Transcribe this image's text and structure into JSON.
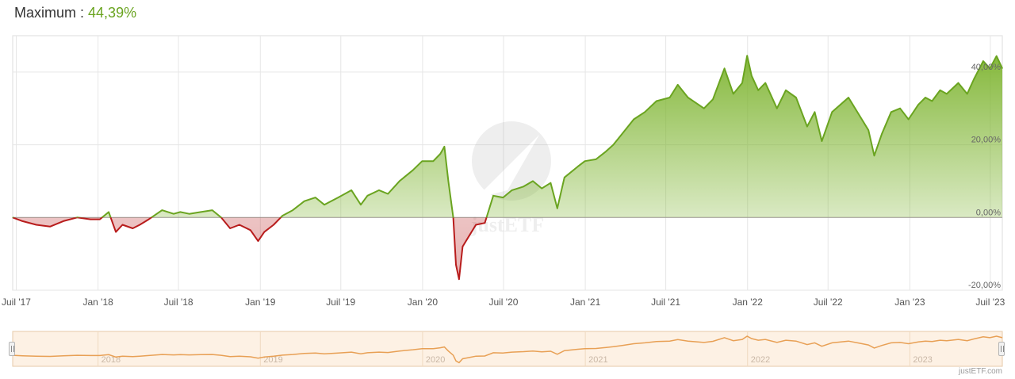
{
  "header": {
    "label": "Maximum :",
    "value": "44,39%"
  },
  "watermark": "justETF",
  "credit": "justETF.com",
  "colors": {
    "positive": "#6aa420",
    "negative": "#b81c1c",
    "navigator": "#e8a055"
  },
  "chart_data": {
    "type": "area",
    "x_range": [
      "2017-06-23",
      "2023-07-28"
    ],
    "ylim": [
      -20,
      50
    ],
    "y_ticks": [
      {
        "value": 40,
        "label": "40,00%"
      },
      {
        "value": 20,
        "label": "20,00%"
      },
      {
        "value": 0,
        "label": "0,00%"
      },
      {
        "value": -20,
        "label": "-20,00%"
      }
    ],
    "x_ticks": [
      {
        "date": "2017-07-01",
        "label": "Juil '17"
      },
      {
        "date": "2018-01-01",
        "label": "Jan '18"
      },
      {
        "date": "2018-07-01",
        "label": "Juil '18"
      },
      {
        "date": "2019-01-01",
        "label": "Jan '19"
      },
      {
        "date": "2019-07-01",
        "label": "Juil '19"
      },
      {
        "date": "2020-01-01",
        "label": "Jan '20"
      },
      {
        "date": "2020-07-01",
        "label": "Juil '20"
      },
      {
        "date": "2021-01-01",
        "label": "Jan '21"
      },
      {
        "date": "2021-07-01",
        "label": "Juil '21"
      },
      {
        "date": "2022-01-01",
        "label": "Jan '22"
      },
      {
        "date": "2022-07-01",
        "label": "Juil '22"
      },
      {
        "date": "2023-01-01",
        "label": "Jan '23"
      },
      {
        "date": "2023-07-01",
        "label": "Juil '23"
      }
    ],
    "navigator_ticks": [
      {
        "date": "2018-01-01",
        "label": "2018"
      },
      {
        "date": "2019-01-01",
        "label": "2019"
      },
      {
        "date": "2020-01-01",
        "label": "2020"
      },
      {
        "date": "2021-01-01",
        "label": "2021"
      },
      {
        "date": "2022-01-01",
        "label": "2022"
      },
      {
        "date": "2023-01-01",
        "label": "2023"
      }
    ],
    "grid": true,
    "series": [
      {
        "points": [
          [
            "2017-06-23",
            0
          ],
          [
            "2017-07-15",
            -1
          ],
          [
            "2017-08-15",
            -2
          ],
          [
            "2017-09-15",
            -2.5
          ],
          [
            "2017-10-15",
            -1
          ],
          [
            "2017-11-15",
            0
          ],
          [
            "2017-12-15",
            -0.5
          ],
          [
            "2018-01-05",
            -0.5
          ],
          [
            "2018-01-25",
            1.5
          ],
          [
            "2018-02-10",
            -4
          ],
          [
            "2018-02-25",
            -2
          ],
          [
            "2018-03-20",
            -3
          ],
          [
            "2018-04-05",
            -2
          ],
          [
            "2018-04-25",
            -0.5
          ],
          [
            "2018-05-25",
            2
          ],
          [
            "2018-06-20",
            1
          ],
          [
            "2018-07-05",
            1.5
          ],
          [
            "2018-07-25",
            1
          ],
          [
            "2018-08-20",
            1.5
          ],
          [
            "2018-09-15",
            2
          ],
          [
            "2018-10-05",
            0
          ],
          [
            "2018-10-25",
            -3
          ],
          [
            "2018-11-15",
            -2
          ],
          [
            "2018-12-10",
            -3.5
          ],
          [
            "2018-12-27",
            -6.5
          ],
          [
            "2019-01-10",
            -4
          ],
          [
            "2019-01-31",
            -2
          ],
          [
            "2019-02-20",
            0.5
          ],
          [
            "2019-03-15",
            2
          ],
          [
            "2019-04-10",
            4.5
          ],
          [
            "2019-05-05",
            5.5
          ],
          [
            "2019-05-25",
            3.5
          ],
          [
            "2019-06-25",
            5.5
          ],
          [
            "2019-07-25",
            7.5
          ],
          [
            "2019-08-15",
            3.5
          ],
          [
            "2019-08-30",
            6
          ],
          [
            "2019-09-25",
            7.5
          ],
          [
            "2019-10-15",
            6.5
          ],
          [
            "2019-11-10",
            10
          ],
          [
            "2019-12-10",
            13
          ],
          [
            "2019-12-31",
            15.5
          ],
          [
            "2020-01-25",
            15.5
          ],
          [
            "2020-02-10",
            17.5
          ],
          [
            "2020-02-19",
            19.5
          ],
          [
            "2020-02-28",
            10
          ],
          [
            "2020-03-10",
            0
          ],
          [
            "2020-03-16",
            -13
          ],
          [
            "2020-03-23",
            -17
          ],
          [
            "2020-03-31",
            -8
          ],
          [
            "2020-04-15",
            -5
          ],
          [
            "2020-04-30",
            -2
          ],
          [
            "2020-05-20",
            -1.5
          ],
          [
            "2020-06-08",
            6
          ],
          [
            "2020-06-30",
            5.5
          ],
          [
            "2020-07-20",
            7.5
          ],
          [
            "2020-08-15",
            8.5
          ],
          [
            "2020-09-05",
            10
          ],
          [
            "2020-09-25",
            8
          ],
          [
            "2020-10-15",
            9.5
          ],
          [
            "2020-10-30",
            2.5
          ],
          [
            "2020-11-15",
            11
          ],
          [
            "2020-12-15",
            14
          ],
          [
            "2020-12-31",
            15.5
          ],
          [
            "2021-01-25",
            16
          ],
          [
            "2021-02-15",
            18
          ],
          [
            "2021-03-05",
            20
          ],
          [
            "2021-03-25",
            23
          ],
          [
            "2021-04-20",
            27
          ],
          [
            "2021-05-15",
            29
          ],
          [
            "2021-06-10",
            32
          ],
          [
            "2021-07-10",
            33
          ],
          [
            "2021-07-28",
            36.5
          ],
          [
            "2021-08-20",
            33
          ],
          [
            "2021-09-25",
            30
          ],
          [
            "2021-10-15",
            32.5
          ],
          [
            "2021-11-10",
            41
          ],
          [
            "2021-11-30",
            34
          ],
          [
            "2021-12-20",
            37
          ],
          [
            "2021-12-31",
            44.5
          ],
          [
            "2022-01-10",
            39
          ],
          [
            "2022-01-25",
            35
          ],
          [
            "2022-02-10",
            37
          ],
          [
            "2022-03-08",
            30
          ],
          [
            "2022-03-28",
            35
          ],
          [
            "2022-04-20",
            33
          ],
          [
            "2022-05-15",
            25
          ],
          [
            "2022-06-01",
            29
          ],
          [
            "2022-06-17",
            21
          ],
          [
            "2022-07-10",
            29
          ],
          [
            "2022-08-16",
            33
          ],
          [
            "2022-09-10",
            28
          ],
          [
            "2022-09-30",
            24
          ],
          [
            "2022-10-13",
            17
          ],
          [
            "2022-10-30",
            23
          ],
          [
            "2022-11-20",
            29
          ],
          [
            "2022-12-10",
            30
          ],
          [
            "2022-12-29",
            27
          ],
          [
            "2023-01-20",
            31
          ],
          [
            "2023-02-05",
            33
          ],
          [
            "2023-02-20",
            32
          ],
          [
            "2023-03-10",
            35
          ],
          [
            "2023-03-25",
            34
          ],
          [
            "2023-04-20",
            37
          ],
          [
            "2023-05-10",
            34
          ],
          [
            "2023-05-25",
            38
          ],
          [
            "2023-06-15",
            43
          ],
          [
            "2023-06-30",
            41
          ],
          [
            "2023-07-15",
            44.4
          ],
          [
            "2023-07-28",
            41
          ]
        ]
      }
    ]
  }
}
